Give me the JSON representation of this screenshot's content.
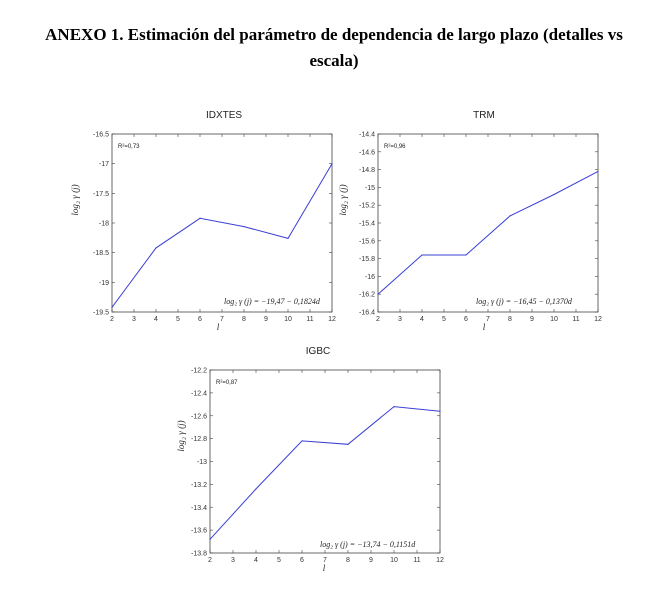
{
  "heading": {
    "line1": "ANEXO 1. Estimación del parámetro de dependencia de largo plazo (detalles vs",
    "line2": "escala)"
  },
  "chart_data": [
    {
      "type": "line",
      "title": "IDXTES",
      "xlabel": "l",
      "ylabel": "log₂ γ (j)",
      "r2": "R²=0,73",
      "equation": "log₂ γ (j) = −19,47 − 0,1824d",
      "xlim": [
        2,
        12
      ],
      "ylim": [
        -19.5,
        -16.5
      ],
      "xticks": [
        2,
        3,
        4,
        5,
        6,
        7,
        8,
        9,
        10,
        11,
        12
      ],
      "yticks": [
        -16.5,
        -17,
        -17.5,
        -18,
        -18.5,
        -19,
        -19.5
      ],
      "ytick_labels": [
        "-16.5",
        "-17",
        "-17.5",
        "-18",
        "-18.5",
        "-19",
        "-19.5"
      ],
      "x": [
        2,
        4,
        6,
        8,
        10,
        12
      ],
      "y": [
        -19.42,
        -18.42,
        -17.92,
        -18.06,
        -18.26,
        -17.0
      ],
      "color": "#3a3fd6"
    },
    {
      "type": "line",
      "title": "TRM",
      "xlabel": "l",
      "ylabel": "log₂ γ (j)",
      "r2": "R²=0,96",
      "equation": "log₂ γ (j) = −16,45 − 0,1370d",
      "xlim": [
        2,
        12
      ],
      "ylim": [
        -16.4,
        -14.4
      ],
      "xticks": [
        2,
        3,
        4,
        5,
        6,
        7,
        8,
        9,
        10,
        11,
        12
      ],
      "yticks": [
        -14.4,
        -14.6,
        -14.8,
        -15,
        -15.2,
        -15.4,
        -15.6,
        -15.8,
        -16,
        -16.2,
        -16.4
      ],
      "ytick_labels": [
        "-14.4",
        "-14.6",
        "-14.8",
        "-15",
        "-15.2",
        "-15.4",
        "-15.6",
        "-15.8",
        "-16",
        "-16.2",
        "-16.4"
      ],
      "x": [
        2,
        4,
        6,
        8,
        10,
        12
      ],
      "y": [
        -16.2,
        -15.76,
        -15.76,
        -15.32,
        -15.08,
        -14.82
      ],
      "color": "#3a3fd6"
    },
    {
      "type": "line",
      "title": "IGBC",
      "xlabel": "l",
      "ylabel": "log₂ γ (j)",
      "r2": "R²=0,87",
      "equation": "log₂ γ (j) = −13,74 − 0,1151d",
      "xlim": [
        2,
        12
      ],
      "ylim": [
        -13.8,
        -12.2
      ],
      "xticks": [
        2,
        3,
        4,
        5,
        6,
        7,
        8,
        9,
        10,
        11,
        12
      ],
      "yticks": [
        -12.2,
        -12.4,
        -12.6,
        -12.8,
        -13,
        -13.2,
        -13.4,
        -13.6,
        -13.8
      ],
      "ytick_labels": [
        "-12.2",
        "-12.4",
        "-12.6",
        "-12.8",
        "-13",
        "-13.2",
        "-13.4",
        "-13.6",
        "-13.8"
      ],
      "x": [
        2,
        4,
        6,
        8,
        10,
        12
      ],
      "y": [
        -13.68,
        -13.24,
        -12.82,
        -12.85,
        -12.52,
        -12.56
      ],
      "color": "#3a3fd6"
    }
  ]
}
